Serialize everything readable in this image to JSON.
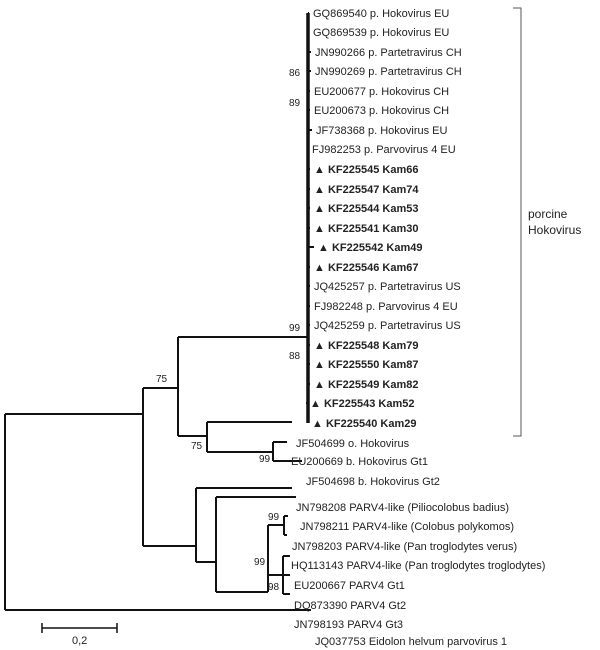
{
  "leaves": [
    {
      "id": "gq869540",
      "label": "GQ869540 p. Hokovirus EU",
      "bold": false,
      "marker": false
    },
    {
      "id": "gq869539",
      "label": "GQ869539 p. Hokovirus EU",
      "bold": false,
      "marker": false
    },
    {
      "id": "jn990266",
      "label": "JN990266 p. Partetravirus CH",
      "bold": false,
      "marker": false
    },
    {
      "id": "jn990269",
      "label": "JN990269 p. Partetravirus CH",
      "bold": false,
      "marker": false
    },
    {
      "id": "eu200677",
      "label": "EU200677 p. Hokovirus CH",
      "bold": false,
      "marker": false
    },
    {
      "id": "eu200673",
      "label": "EU200673 p. Hokovirus CH",
      "bold": false,
      "marker": false
    },
    {
      "id": "jf738368",
      "label": "JF738368 p. Hokovirus EU",
      "bold": false,
      "marker": false
    },
    {
      "id": "fj982253",
      "label": "FJ982253 p. Parvovirus 4 EU",
      "bold": false,
      "marker": false
    },
    {
      "id": "kf225545",
      "label": "KF225545 Kam66",
      "bold": true,
      "marker": true
    },
    {
      "id": "kf225547",
      "label": "KF225547 Kam74",
      "bold": true,
      "marker": true
    },
    {
      "id": "kf225544",
      "label": "KF225544 Kam53",
      "bold": true,
      "marker": true
    },
    {
      "id": "kf225541",
      "label": "KF225541 Kam30",
      "bold": true,
      "marker": true
    },
    {
      "id": "kf225542",
      "label": "KF225542 Kam49",
      "bold": true,
      "marker": true
    },
    {
      "id": "kf225546",
      "label": "KF225546 Kam67",
      "bold": true,
      "marker": true
    },
    {
      "id": "jq425257",
      "label": "JQ425257 p. Partetravirus US",
      "bold": false,
      "marker": false
    },
    {
      "id": "fj982248",
      "label": "FJ982248 p. Parvovirus 4 EU",
      "bold": false,
      "marker": false
    },
    {
      "id": "jq425259",
      "label": "JQ425259 p. Partetravirus US",
      "bold": false,
      "marker": false
    },
    {
      "id": "kf225548",
      "label": "KF225548 Kam79",
      "bold": true,
      "marker": true
    },
    {
      "id": "kf225550",
      "label": "KF225550 Kam87",
      "bold": true,
      "marker": true
    },
    {
      "id": "kf225549",
      "label": "KF225549 Kam82",
      "bold": true,
      "marker": true
    },
    {
      "id": "kf225543",
      "label": "KF225543 Kam52",
      "bold": true,
      "marker": true
    },
    {
      "id": "kf225540",
      "label": "KF225540 Kam29",
      "bold": true,
      "marker": true
    },
    {
      "id": "jf504699",
      "label": "JF504699 o. Hokovirus",
      "bold": false,
      "marker": false
    },
    {
      "id": "eu200669",
      "label": "EU200669 b. Hokovirus Gt1",
      "bold": false,
      "marker": false
    },
    {
      "id": "jf504698",
      "label": "JF504698 b. Hokovirus Gt2",
      "bold": false,
      "marker": false
    },
    {
      "id": "jn798208",
      "label": "JN798208 PARV4-like (Piliocolobus badius)",
      "bold": false,
      "marker": false
    },
    {
      "id": "jn798211",
      "label": "JN798211 PARV4-like (Colobus polykomos)",
      "bold": false,
      "marker": false
    },
    {
      "id": "jn798203",
      "label": "JN798203 PARV4-like (Pan troglodytes verus)",
      "bold": false,
      "marker": false
    },
    {
      "id": "hq113143",
      "label": "HQ113143 PARV4-like (Pan troglodytes troglodytes)",
      "bold": false,
      "marker": false
    },
    {
      "id": "eu200667",
      "label": "EU200667 PARV4 Gt1",
      "bold": false,
      "marker": false
    },
    {
      "id": "dq873390",
      "label": "DQ873390 PARV4 Gt2",
      "bold": false,
      "marker": false
    },
    {
      "id": "jn798193",
      "label": "JN798193 PARV4 Gt3",
      "bold": false,
      "marker": false
    },
    {
      "id": "jq037753",
      "label": "JQ037753 Eidolon helvum parvovirus 1",
      "bold": false,
      "marker": false
    }
  ],
  "marker_symbol": "▲",
  "bootstrap": [
    {
      "id": "bs-86",
      "value": "86"
    },
    {
      "id": "bs-89",
      "value": "89"
    },
    {
      "id": "bs-99-a",
      "value": "99"
    },
    {
      "id": "bs-88",
      "value": "88"
    },
    {
      "id": "bs-75-a",
      "value": "75"
    },
    {
      "id": "bs-75-b",
      "value": "75"
    },
    {
      "id": "bs-99-b",
      "value": "99"
    },
    {
      "id": "bs-99-c",
      "value": "99"
    },
    {
      "id": "bs-99-d",
      "value": "99"
    },
    {
      "id": "bs-98",
      "value": "98"
    }
  ],
  "clade_label": {
    "line1": "porcine",
    "line2": "Hokovirus"
  },
  "scale_label": "0,2"
}
